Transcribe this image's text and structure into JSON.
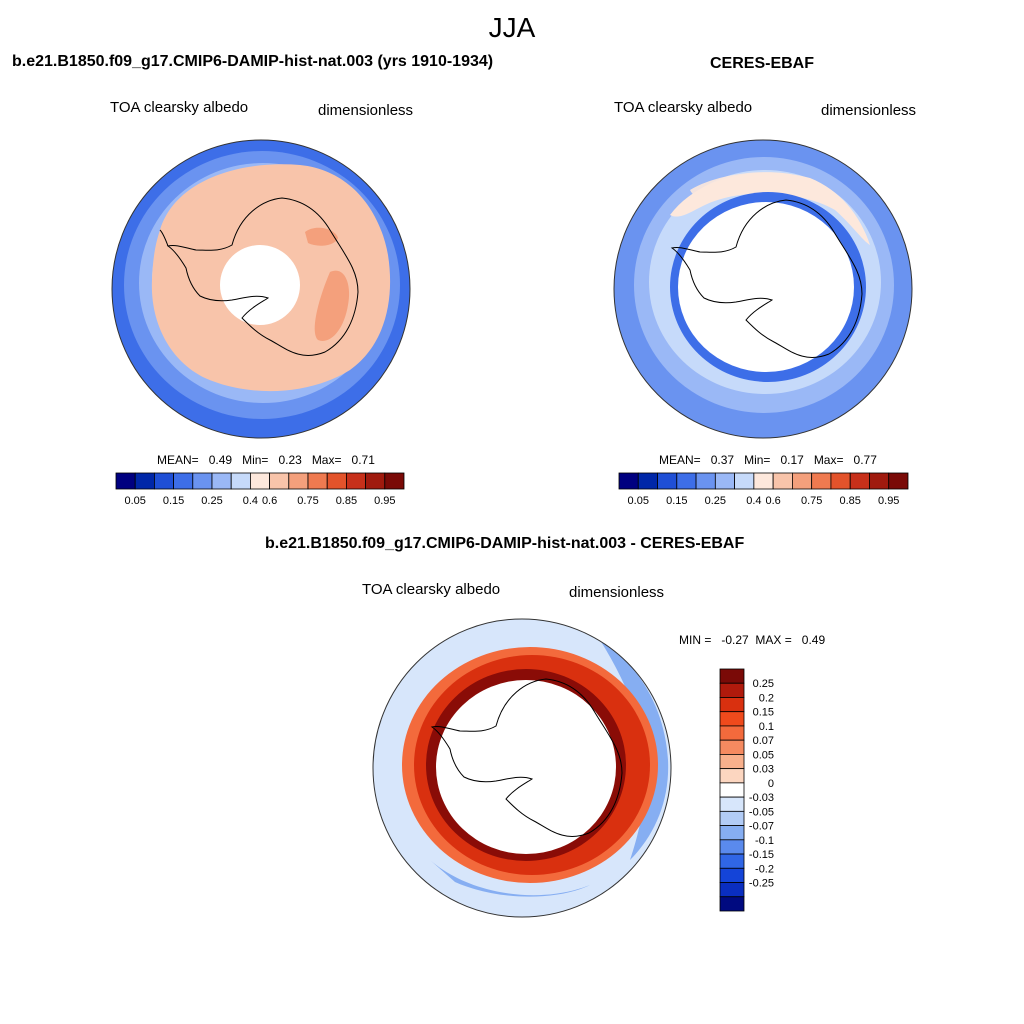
{
  "figure": {
    "title": "JJA",
    "panels": [
      {
        "title": "b.e21.B1850.f09_g17.CMIP6-DAMIP-hist-nat.003 (yrs 1910-1934)",
        "left_label": "TOA clearsky albedo",
        "right_label": "dimensionless",
        "stats": {
          "mean_label": "MEAN=",
          "mean": "0.49",
          "min_label": "Min=",
          "min": "0.23",
          "max_label": "Max=",
          "max": "0.71"
        }
      },
      {
        "title": "CERES-EBAF",
        "left_label": "TOA clearsky albedo",
        "right_label": "dimensionless",
        "stats": {
          "mean_label": "MEAN=",
          "mean": "0.37",
          "min_label": "Min=",
          "min": "0.17",
          "max_label": "Max=",
          "max": "0.77"
        }
      },
      {
        "title": "b.e21.B1850.f09_g17.CMIP6-DAMIP-hist-nat.003 - CERES-EBAF",
        "left_label": "TOA clearsky albedo",
        "right_label": "dimensionless",
        "stats": {
          "min_label": "MIN =",
          "min": "-0.27",
          "max_label": "MAX =",
          "max": "0.49"
        }
      }
    ],
    "colorbar_abs": {
      "colors": [
        "#000080",
        "#0027a8",
        "#1f4fd6",
        "#3d6ee8",
        "#6a93f0",
        "#9ab8f6",
        "#c6dafa",
        "#fde8dc",
        "#f8c4aa",
        "#f4a07c",
        "#ef7a50",
        "#e3532b",
        "#c7301a",
        "#a01a0e",
        "#7a0a07"
      ],
      "tick_labels": [
        "0.05",
        "0.15",
        "0.25",
        "0.4",
        "0.6",
        "0.75",
        "0.85",
        "0.95"
      ]
    },
    "colorbar_diff": {
      "colors": [
        "#7a0a07",
        "#b01a0c",
        "#d9300f",
        "#ef4a1c",
        "#f36a3c",
        "#f58a60",
        "#f8b08c",
        "#fcd6c0",
        "#ffffff",
        "#d7e6fb",
        "#b2ccf6",
        "#86aef2",
        "#5a8aed",
        "#3066e6",
        "#1444d8",
        "#0a2ec0",
        "#000a80"
      ],
      "tick_labels": [
        "0.25",
        "0.2",
        "0.15",
        "0.1",
        "0.07",
        "0.05",
        "0.03",
        "0",
        "-0.03",
        "-0.05",
        "-0.07",
        "-0.1",
        "-0.15",
        "-0.2",
        "-0.25"
      ]
    },
    "map_colors": {
      "model_ocean_outer": "#3d6ee8",
      "model_ocean_mid": "#6a93f0",
      "model_ocean_inner": "#9ab8f6",
      "model_ocean_edge": "#c6dafa",
      "model_ice": "#f8c4aa",
      "model_ice_high": "#f4a07c",
      "obs_outer": "#6a93f0",
      "obs_mid": "#9ab8f6",
      "obs_light": "#c6dafa",
      "obs_ring": "#3d6ee8",
      "obs_warm": "#fde8dc",
      "diff_outer": "#d7e6fb",
      "diff_blue": "#86aef2",
      "diff_red": "#d9300f",
      "diff_orange": "#f36a3c",
      "diff_dark": "#8a0c07",
      "coast": "#000000"
    }
  }
}
